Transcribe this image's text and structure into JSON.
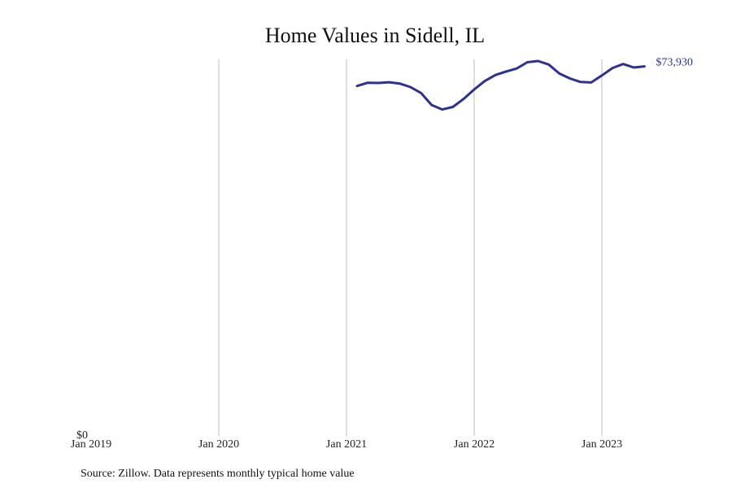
{
  "chart_data": {
    "type": "line",
    "title": "Home Values in Sidell, IL",
    "xlabel": "",
    "ylabel": "",
    "x_axis": {
      "start": "2019-01",
      "end": "2023-12",
      "ticks": [
        {
          "date": "2019-01",
          "label": "Jan 2019"
        },
        {
          "date": "2020-01",
          "label": "Jan 2020"
        },
        {
          "date": "2021-01",
          "label": "Jan 2021"
        },
        {
          "date": "2022-01",
          "label": "Jan 2022"
        },
        {
          "date": "2023-01",
          "label": "Jan 2023"
        }
      ]
    },
    "y_axis": {
      "ylim": [
        0,
        75000
      ],
      "ticks": [
        {
          "value": 0,
          "label": "$0"
        }
      ]
    },
    "grid": {
      "vertical": true,
      "horizontal": false
    },
    "series": [
      {
        "color": "#2e3192",
        "end_label": "$73,930",
        "points": [
          {
            "x": "2021-02",
            "y": 70000
          },
          {
            "x": "2021-03",
            "y": 70650
          },
          {
            "x": "2021-04",
            "y": 70600
          },
          {
            "x": "2021-05",
            "y": 70750
          },
          {
            "x": "2021-06",
            "y": 70500
          },
          {
            "x": "2021-07",
            "y": 69800
          },
          {
            "x": "2021-08",
            "y": 68600
          },
          {
            "x": "2021-09",
            "y": 66200
          },
          {
            "x": "2021-10",
            "y": 65300
          },
          {
            "x": "2021-11",
            "y": 65800
          },
          {
            "x": "2021-12",
            "y": 67400
          },
          {
            "x": "2022-01",
            "y": 69300
          },
          {
            "x": "2022-02",
            "y": 71000
          },
          {
            "x": "2022-03",
            "y": 72200
          },
          {
            "x": "2022-04",
            "y": 72900
          },
          {
            "x": "2022-05",
            "y": 73500
          },
          {
            "x": "2022-06",
            "y": 74750
          },
          {
            "x": "2022-07",
            "y": 75000
          },
          {
            "x": "2022-08",
            "y": 74300
          },
          {
            "x": "2022-09",
            "y": 72500
          },
          {
            "x": "2022-10",
            "y": 71500
          },
          {
            "x": "2022-11",
            "y": 70800
          },
          {
            "x": "2022-12",
            "y": 70700
          },
          {
            "x": "2023-01",
            "y": 72100
          },
          {
            "x": "2023-02",
            "y": 73600
          },
          {
            "x": "2023-03",
            "y": 74400
          },
          {
            "x": "2023-04",
            "y": 73700
          },
          {
            "x": "2023-05",
            "y": 73930
          }
        ]
      }
    ]
  },
  "footer": {
    "source": "Source: Zillow. Data represents monthly typical home value"
  }
}
